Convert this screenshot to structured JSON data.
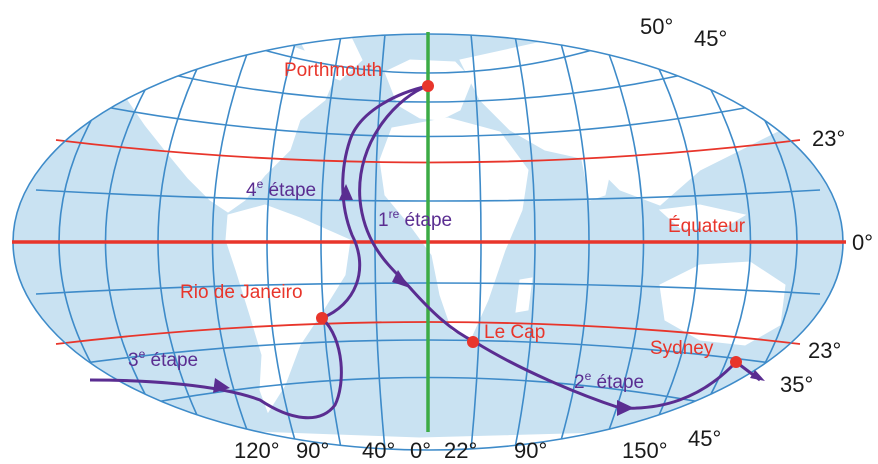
{
  "colors": {
    "ocean": "#c9e2f2",
    "land": "#ffffff",
    "graticule": "#3e8bc9",
    "tropics": "#e8352b",
    "equator": "#e8352b",
    "meridian": "#3cab45",
    "route": "#5a2d91",
    "city": "#e8352b",
    "text": "#1a1a1a"
  },
  "cities": {
    "portsmouth": "Porthmouth",
    "rio": "Rio de Janeiro",
    "cape": "Le Cap",
    "sydney": "Sydney"
  },
  "equator_label": "Équateur",
  "stages": {
    "s1_num": "1",
    "s1_sup": "re",
    "s1_word": " étape",
    "s2_num": "2",
    "s2_sup": "e",
    "s2_word": " étape",
    "s3_num": "3",
    "s3_sup": "e",
    "s3_word": " étape",
    "s4_num": "4",
    "s4_sup": "e",
    "s4_word": " étape"
  },
  "latitude_labels": {
    "lat50": "50°",
    "lat45n": "45°",
    "lat23n": "23°",
    "lat0": "0°",
    "lat23s": "23°",
    "lat35s": "35°",
    "lat45s": "45°"
  },
  "longitude_labels": {
    "lon120": "120°",
    "lon90w": "90°",
    "lon40": "40°",
    "lon0": "0°",
    "lon22": "22°",
    "lon90e": "90°",
    "lon150": "150°"
  }
}
